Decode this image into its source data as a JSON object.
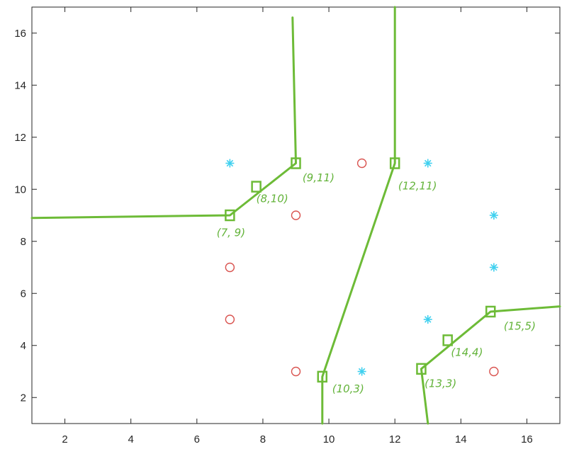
{
  "chart_data": {
    "type": "scatter",
    "title": "",
    "xlabel": "",
    "ylabel": "",
    "xlim": [
      1,
      17
    ],
    "ylim": [
      1,
      17
    ],
    "xticks": [
      "2",
      "4",
      "6",
      "8",
      "10",
      "12",
      "14",
      "16"
    ],
    "yticks": [
      "2",
      "4",
      "6",
      "8",
      "10",
      "12",
      "14",
      "16"
    ],
    "grid": false,
    "series": [
      {
        "marker": "circle",
        "color": "#d9534f",
        "points": [
          [
            7,
            7
          ],
          [
            7,
            5
          ],
          [
            9,
            9
          ],
          [
            9,
            3
          ],
          [
            11,
            11
          ],
          [
            15,
            3
          ]
        ]
      },
      {
        "marker": "asterisk",
        "color": "#3fd0ef",
        "points": [
          [
            7,
            11
          ],
          [
            11,
            3
          ],
          [
            13,
            11
          ],
          [
            13,
            5
          ],
          [
            15,
            9
          ],
          [
            15,
            7
          ]
        ]
      }
    ],
    "boundary_color": "#6dbb37",
    "boundaries": [
      [
        [
          1,
          8.9
        ],
        [
          7,
          9
        ],
        [
          9,
          11
        ],
        [
          8.9,
          16.6
        ]
      ],
      [
        [
          12,
          17
        ],
        [
          12,
          11
        ],
        [
          9.8,
          2.8
        ],
        [
          9.8,
          1
        ]
      ],
      [
        [
          13,
          1
        ],
        [
          12.8,
          3.1
        ],
        [
          14.9,
          5.3
        ],
        [
          17,
          5.5
        ]
      ]
    ],
    "vertex_markers": [
      [
        7,
        9
      ],
      [
        7.8,
        10.1
      ],
      [
        9,
        11
      ],
      [
        12,
        11
      ],
      [
        9.8,
        2.8
      ],
      [
        12.8,
        3.1
      ],
      [
        13.6,
        4.2
      ],
      [
        14.9,
        5.3
      ]
    ],
    "annotations": [
      {
        "text": "(7, 9)",
        "x": 6.6,
        "y": 8.2
      },
      {
        "text": "(8,10)",
        "x": 7.8,
        "y": 9.5
      },
      {
        "text": "(9,11)",
        "x": 9.2,
        "y": 10.3
      },
      {
        "text": "(12,11)",
        "x": 12.1,
        "y": 10.0
      },
      {
        "text": "(10,3)",
        "x": 10.1,
        "y": 2.2
      },
      {
        "text": "(13,3)",
        "x": 12.9,
        "y": 2.4
      },
      {
        "text": "(14,4)",
        "x": 13.7,
        "y": 3.6
      },
      {
        "text": "(15,5)",
        "x": 15.3,
        "y": 4.6
      }
    ]
  }
}
